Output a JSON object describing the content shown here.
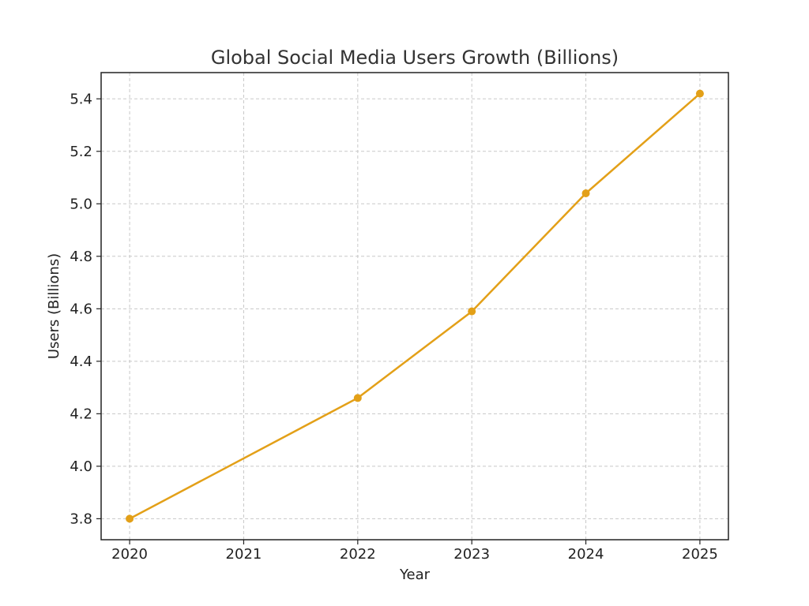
{
  "chart_data": {
    "type": "line",
    "title": "Global Social Media Users Growth (Billions)",
    "xlabel": "Year",
    "ylabel": "Users (Billions)",
    "x": [
      2020,
      2022,
      2023,
      2024,
      2025
    ],
    "x_ticks": [
      "2020",
      "2021",
      "2022",
      "2023",
      "2024",
      "2025"
    ],
    "xlim": [
      2019.75,
      2025.25
    ],
    "y_ticks": [
      "3.8",
      "4.0",
      "4.2",
      "4.4",
      "4.6",
      "4.8",
      "5.0",
      "5.2",
      "5.4"
    ],
    "ylim": [
      3.72,
      5.5
    ],
    "grid": true,
    "series": [
      {
        "values": [
          3.8,
          4.26,
          4.59,
          5.04,
          5.42
        ],
        "color": "#e3a018"
      }
    ]
  }
}
